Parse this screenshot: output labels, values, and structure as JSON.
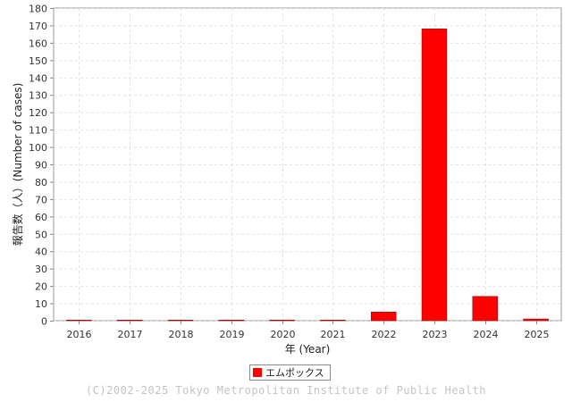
{
  "chart_data": {
    "type": "bar",
    "title": "",
    "xlabel": "年 (Year)",
    "ylabel": "報告数（人）(Number of cases)",
    "categories": [
      "2016",
      "2017",
      "2018",
      "2019",
      "2020",
      "2021",
      "2022",
      "2023",
      "2024",
      "2025"
    ],
    "series": [
      {
        "name": "エムポックス",
        "color": "#ff0000",
        "values": [
          0,
          0,
          0,
          0,
          0,
          0,
          5,
          168,
          14,
          1
        ]
      }
    ],
    "ylim": [
      0,
      180
    ],
    "yticks": [
      0,
      10,
      20,
      30,
      40,
      50,
      60,
      70,
      80,
      90,
      100,
      110,
      120,
      130,
      140,
      150,
      160,
      170,
      180
    ],
    "grid": true,
    "legend_position": "bottom-center"
  },
  "footer": {
    "copyright": "(C)2002-2025 Tokyo Metropolitan Institute of Public Health"
  }
}
